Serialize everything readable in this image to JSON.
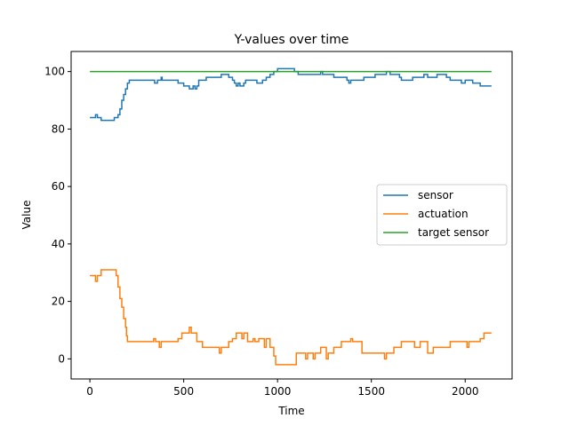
{
  "chart_data": {
    "type": "line",
    "title": "Y-values over time",
    "xlabel": "Time",
    "ylabel": "Value",
    "xlim": [
      -100,
      2250
    ],
    "ylim": [
      -7,
      107
    ],
    "xticks": [
      0,
      500,
      1000,
      1500,
      2000
    ],
    "yticks": [
      0,
      20,
      40,
      60,
      80,
      100
    ],
    "grid": false,
    "legend_position": "center-right",
    "series": [
      {
        "name": "sensor",
        "color": "#1f77b4",
        "step": true,
        "points": [
          [
            0,
            84
          ],
          [
            30,
            85
          ],
          [
            40,
            84
          ],
          [
            60,
            83
          ],
          [
            120,
            83
          ],
          [
            130,
            84
          ],
          [
            150,
            85
          ],
          [
            160,
            87
          ],
          [
            170,
            90
          ],
          [
            180,
            92
          ],
          [
            190,
            94
          ],
          [
            200,
            96
          ],
          [
            210,
            97
          ],
          [
            340,
            97
          ],
          [
            345,
            96
          ],
          [
            360,
            97
          ],
          [
            380,
            98
          ],
          [
            385,
            97
          ],
          [
            460,
            97
          ],
          [
            470,
            96
          ],
          [
            490,
            96
          ],
          [
            500,
            95
          ],
          [
            520,
            95
          ],
          [
            530,
            94
          ],
          [
            550,
            95
          ],
          [
            560,
            94
          ],
          [
            570,
            95
          ],
          [
            580,
            97
          ],
          [
            600,
            97
          ],
          [
            620,
            98
          ],
          [
            690,
            98
          ],
          [
            700,
            99
          ],
          [
            730,
            99
          ],
          [
            740,
            98
          ],
          [
            760,
            97
          ],
          [
            770,
            96
          ],
          [
            780,
            95
          ],
          [
            790,
            96
          ],
          [
            800,
            95
          ],
          [
            810,
            95
          ],
          [
            820,
            96
          ],
          [
            830,
            97
          ],
          [
            880,
            97
          ],
          [
            890,
            96
          ],
          [
            920,
            97
          ],
          [
            940,
            98
          ],
          [
            960,
            99
          ],
          [
            980,
            100
          ],
          [
            1000,
            101
          ],
          [
            1080,
            101
          ],
          [
            1090,
            100
          ],
          [
            1100,
            100
          ],
          [
            1110,
            99
          ],
          [
            1200,
            99
          ],
          [
            1230,
            100
          ],
          [
            1240,
            99
          ],
          [
            1280,
            99
          ],
          [
            1300,
            98
          ],
          [
            1350,
            98
          ],
          [
            1370,
            97
          ],
          [
            1380,
            96
          ],
          [
            1390,
            97
          ],
          [
            1460,
            98
          ],
          [
            1500,
            98
          ],
          [
            1520,
            99
          ],
          [
            1570,
            99
          ],
          [
            1580,
            100
          ],
          [
            1600,
            99
          ],
          [
            1650,
            98
          ],
          [
            1660,
            97
          ],
          [
            1700,
            97
          ],
          [
            1720,
            98
          ],
          [
            1760,
            98
          ],
          [
            1780,
            99
          ],
          [
            1800,
            98
          ],
          [
            1850,
            99
          ],
          [
            1900,
            98
          ],
          [
            1920,
            97
          ],
          [
            1960,
            97
          ],
          [
            1980,
            96
          ],
          [
            2000,
            97
          ],
          [
            2040,
            96
          ],
          [
            2060,
            96
          ],
          [
            2080,
            95
          ],
          [
            2140,
            95
          ]
        ]
      },
      {
        "name": "actuation",
        "color": "#ff7f0e",
        "step": true,
        "points": [
          [
            0,
            29
          ],
          [
            30,
            27
          ],
          [
            40,
            29
          ],
          [
            60,
            31
          ],
          [
            130,
            31
          ],
          [
            140,
            29
          ],
          [
            150,
            25
          ],
          [
            160,
            21
          ],
          [
            170,
            18
          ],
          [
            180,
            14
          ],
          [
            190,
            11
          ],
          [
            195,
            8
          ],
          [
            200,
            6
          ],
          [
            330,
            6
          ],
          [
            340,
            7
          ],
          [
            350,
            6
          ],
          [
            370,
            4
          ],
          [
            380,
            6
          ],
          [
            460,
            6
          ],
          [
            470,
            7
          ],
          [
            490,
            9
          ],
          [
            520,
            9
          ],
          [
            530,
            11
          ],
          [
            540,
            9
          ],
          [
            560,
            9
          ],
          [
            570,
            6
          ],
          [
            580,
            6
          ],
          [
            600,
            4
          ],
          [
            680,
            4
          ],
          [
            690,
            2
          ],
          [
            700,
            4
          ],
          [
            740,
            6
          ],
          [
            760,
            7
          ],
          [
            780,
            9
          ],
          [
            800,
            9
          ],
          [
            810,
            7
          ],
          [
            820,
            9
          ],
          [
            840,
            6
          ],
          [
            860,
            6
          ],
          [
            870,
            7
          ],
          [
            880,
            6
          ],
          [
            900,
            7
          ],
          [
            920,
            7
          ],
          [
            930,
            4
          ],
          [
            940,
            7
          ],
          [
            960,
            4
          ],
          [
            980,
            1
          ],
          [
            990,
            -2
          ],
          [
            1000,
            -2
          ],
          [
            1010,
            -2
          ],
          [
            1080,
            -2
          ],
          [
            1100,
            2
          ],
          [
            1140,
            2
          ],
          [
            1150,
            0
          ],
          [
            1160,
            2
          ],
          [
            1180,
            2
          ],
          [
            1190,
            0
          ],
          [
            1200,
            2
          ],
          [
            1230,
            4
          ],
          [
            1250,
            4
          ],
          [
            1260,
            0
          ],
          [
            1270,
            2
          ],
          [
            1300,
            4
          ],
          [
            1340,
            6
          ],
          [
            1380,
            6
          ],
          [
            1390,
            7
          ],
          [
            1400,
            6
          ],
          [
            1440,
            6
          ],
          [
            1450,
            2
          ],
          [
            1560,
            2
          ],
          [
            1570,
            0
          ],
          [
            1580,
            2
          ],
          [
            1620,
            4
          ],
          [
            1660,
            6
          ],
          [
            1700,
            6
          ],
          [
            1730,
            4
          ],
          [
            1760,
            6
          ],
          [
            1780,
            6
          ],
          [
            1800,
            2
          ],
          [
            1820,
            2
          ],
          [
            1830,
            4
          ],
          [
            1900,
            4
          ],
          [
            1920,
            6
          ],
          [
            2000,
            6
          ],
          [
            2010,
            4
          ],
          [
            2020,
            6
          ],
          [
            2080,
            7
          ],
          [
            2100,
            9
          ],
          [
            2140,
            9
          ]
        ]
      },
      {
        "name": "target sensor",
        "color": "#2ca02c",
        "step": false,
        "points": [
          [
            0,
            100
          ],
          [
            2140,
            100
          ]
        ]
      }
    ]
  }
}
